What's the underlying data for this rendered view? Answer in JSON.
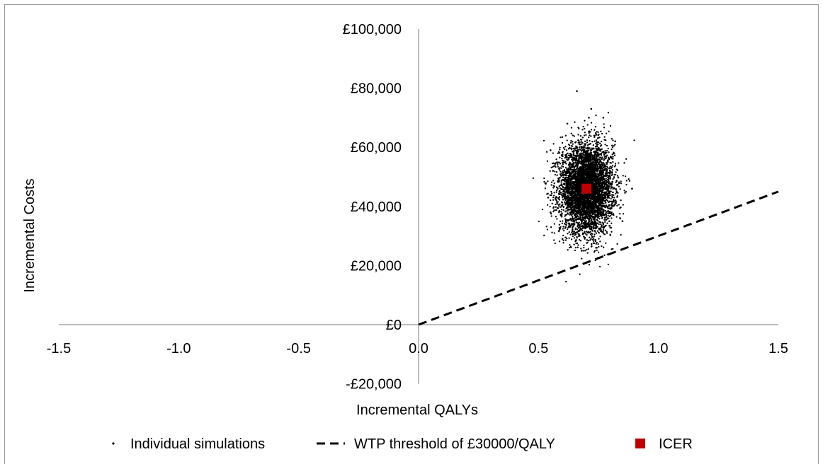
{
  "chart_data": {
    "type": "scatter",
    "xlabel": "Incremental QALYs",
    "ylabel": "Incremental Costs",
    "xlim": [
      -1.5,
      1.5
    ],
    "ylim": [
      -20000,
      100000
    ],
    "x_ticks": [
      -1.5,
      -1.0,
      -0.5,
      0.0,
      0.5,
      1.0,
      1.5
    ],
    "x_tick_labels": [
      "-1.5",
      "-1.0",
      "-0.5",
      "0.0",
      "0.5",
      "1.0",
      "1.5"
    ],
    "y_ticks": [
      -20000,
      0,
      20000,
      40000,
      60000,
      80000,
      100000
    ],
    "y_tick_labels": [
      "-£20,000",
      "£0",
      "£20,000",
      "£40,000",
      "£60,000",
      "£80,000",
      "£100,000"
    ],
    "grid": false,
    "legend_position": "bottom",
    "series": [
      {
        "name": "Individual simulations",
        "kind": "scatter",
        "color": "#000000",
        "count": 5000,
        "mean": [
          0.7,
          46000
        ],
        "sd": [
          0.055,
          7500
        ],
        "sample_points": [
          [
            0.66,
            79000
          ],
          [
            0.55,
            59000
          ],
          [
            0.89,
            46000
          ],
          [
            0.54,
            43000
          ],
          [
            0.55,
            38000
          ],
          [
            0.6,
            29000
          ],
          [
            0.68,
            25000
          ],
          [
            0.74,
            26000
          ],
          [
            0.85,
            35000
          ],
          [
            0.72,
            73000
          ],
          [
            0.71,
            70000
          ],
          [
            0.77,
            70000
          ],
          [
            0.62,
            68000
          ],
          [
            0.82,
            62000
          ],
          [
            0.56,
            52000
          ]
        ]
      },
      {
        "name": "WTP threshold of £30000/QALY",
        "kind": "line",
        "style": "dashed",
        "color": "#000000",
        "x": [
          0.0,
          1.5
        ],
        "y": [
          0,
          45000
        ]
      },
      {
        "name": "ICER",
        "kind": "point",
        "color": "#c00000",
        "x": 0.7,
        "y": 46000
      }
    ]
  }
}
